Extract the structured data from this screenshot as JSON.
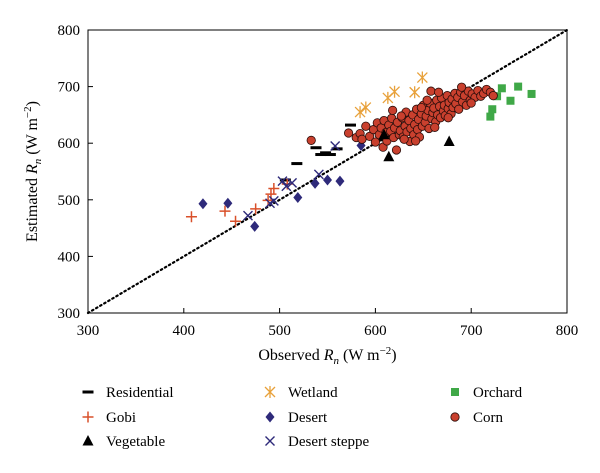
{
  "chart_data": {
    "type": "scatter",
    "xlabel": {
      "main": "Observed ",
      "var": "R",
      "sub": "n",
      "unit": " (W m",
      "sup": "−2",
      "close": ")"
    },
    "ylabel": {
      "main": "Estimated ",
      "var": "R",
      "sub": "n",
      "unit": " (W m",
      "sup": "−2",
      "close": ")"
    },
    "xlim": [
      300,
      800
    ],
    "ylim": [
      300,
      800
    ],
    "xticks": [
      300,
      400,
      500,
      600,
      700,
      800
    ],
    "yticks": [
      300,
      400,
      500,
      600,
      700,
      800
    ],
    "grid": false,
    "reference_line": {
      "style": "dotted",
      "from": [
        300,
        300
      ],
      "to": [
        800,
        800
      ]
    },
    "legend_position": "bottom",
    "series": [
      {
        "name": "Residential",
        "marker": "dash",
        "color": "#000000",
        "points": [
          [
            518,
            564
          ],
          [
            538,
            592
          ],
          [
            543,
            580
          ],
          [
            548,
            583
          ],
          [
            553,
            580
          ],
          [
            560,
            590
          ],
          [
            574,
            632
          ],
          [
            608,
            606
          ],
          [
            613,
            613
          ],
          [
            630,
            634
          ],
          [
            647,
            648
          ],
          [
            506,
            535
          ]
        ]
      },
      {
        "name": "Wetland",
        "marker": "asterisk",
        "color": "#e8a13a",
        "points": [
          [
            584,
            655
          ],
          [
            590,
            663
          ],
          [
            613,
            680
          ],
          [
            620,
            691
          ],
          [
            641,
            690
          ],
          [
            649,
            716
          ]
        ]
      },
      {
        "name": "Orchard",
        "marker": "square",
        "color": "#3fa847",
        "points": [
          [
            720,
            647
          ],
          [
            722,
            660
          ],
          [
            727,
            683
          ],
          [
            732,
            697
          ],
          [
            741,
            675
          ],
          [
            749,
            700
          ],
          [
            763,
            687
          ]
        ]
      },
      {
        "name": "Gobi",
        "marker": "plus",
        "color": "#d9502a",
        "points": [
          [
            408,
            470
          ],
          [
            443,
            480
          ],
          [
            454,
            462
          ],
          [
            475,
            484
          ],
          [
            488,
            499
          ],
          [
            491,
            510
          ],
          [
            494,
            520
          ],
          [
            508,
            528
          ]
        ]
      },
      {
        "name": "Desert",
        "marker": "diamond",
        "color": "#2e2a7a",
        "points": [
          [
            420,
            493
          ],
          [
            446,
            494
          ],
          [
            474,
            453
          ],
          [
            519,
            504
          ],
          [
            537,
            529
          ],
          [
            550,
            535
          ],
          [
            563,
            533
          ],
          [
            585,
            596
          ]
        ]
      },
      {
        "name": "Corn",
        "marker": "circle",
        "color": "#c9402e",
        "points": [
          [
            533,
            605
          ],
          [
            572,
            618
          ],
          [
            580,
            610
          ],
          [
            584,
            617
          ],
          [
            586,
            607
          ],
          [
            590,
            630
          ],
          [
            594,
            612
          ],
          [
            598,
            624
          ],
          [
            600,
            602
          ],
          [
            602,
            636
          ],
          [
            604,
            615
          ],
          [
            606,
            627
          ],
          [
            608,
            593
          ],
          [
            609,
            640
          ],
          [
            611,
            619
          ],
          [
            612,
            604
          ],
          [
            614,
            632
          ],
          [
            616,
            621
          ],
          [
            617,
            644
          ],
          [
            619,
            610
          ],
          [
            620,
            627
          ],
          [
            622,
            588
          ],
          [
            623,
            637
          ],
          [
            625,
            615
          ],
          [
            626,
            622
          ],
          [
            628,
            645
          ],
          [
            629,
            611
          ],
          [
            631,
            630
          ],
          [
            632,
            655
          ],
          [
            633,
            620
          ],
          [
            635,
            640
          ],
          [
            636,
            603
          ],
          [
            637,
            626
          ],
          [
            639,
            650
          ],
          [
            640,
            615
          ],
          [
            641,
            633
          ],
          [
            643,
            660
          ],
          [
            644,
            624
          ],
          [
            645,
            642
          ],
          [
            646,
            611
          ],
          [
            648,
            652
          ],
          [
            649,
            630
          ],
          [
            650,
            667
          ],
          [
            652,
            637
          ],
          [
            653,
            648
          ],
          [
            655,
            658
          ],
          [
            656,
            626
          ],
          [
            657,
            671
          ],
          [
            659,
            643
          ],
          [
            660,
            654
          ],
          [
            661,
            662
          ],
          [
            663,
            638
          ],
          [
            664,
            676
          ],
          [
            665,
            650
          ],
          [
            667,
            665
          ],
          [
            668,
            645
          ],
          [
            669,
            680
          ],
          [
            671,
            657
          ],
          [
            672,
            667
          ],
          [
            673,
            649
          ],
          [
            675,
            684
          ],
          [
            676,
            661
          ],
          [
            677,
            672
          ],
          [
            679,
            652
          ],
          [
            680,
            678
          ],
          [
            681,
            663
          ],
          [
            683,
            688
          ],
          [
            684,
            670
          ],
          [
            686,
            681
          ],
          [
            687,
            660
          ],
          [
            689,
            690
          ],
          [
            691,
            673
          ],
          [
            693,
            684
          ],
          [
            695,
            667
          ],
          [
            697,
            692
          ],
          [
            699,
            676
          ],
          [
            701,
            687
          ],
          [
            704,
            681
          ],
          [
            707,
            693
          ],
          [
            710,
            683
          ],
          [
            713,
            688
          ],
          [
            716,
            695
          ],
          [
            720,
            690
          ],
          [
            723,
            684
          ],
          [
            658,
            692
          ],
          [
            648,
            663
          ],
          [
            642,
            604
          ],
          [
            630,
            607
          ],
          [
            618,
            658
          ],
          [
            654,
            676
          ],
          [
            666,
            690
          ],
          [
            676,
            645
          ],
          [
            690,
            699
          ],
          [
            700,
            671
          ],
          [
            662,
            628
          ],
          [
            627,
            648
          ]
        ]
      },
      {
        "name": "Vegetable",
        "marker": "triangle",
        "color": "#000000",
        "points": [
          [
            609,
            615
          ],
          [
            614,
            576
          ],
          [
            677,
            603
          ]
        ]
      },
      {
        "name": "Desert steppe",
        "marker": "x",
        "color": "#2e2a7a",
        "points": [
          [
            467,
            472
          ],
          [
            490,
            494
          ],
          [
            494,
            498
          ],
          [
            503,
            533
          ],
          [
            507,
            524
          ],
          [
            513,
            530
          ],
          [
            541,
            545
          ],
          [
            558,
            595
          ]
        ]
      }
    ]
  }
}
